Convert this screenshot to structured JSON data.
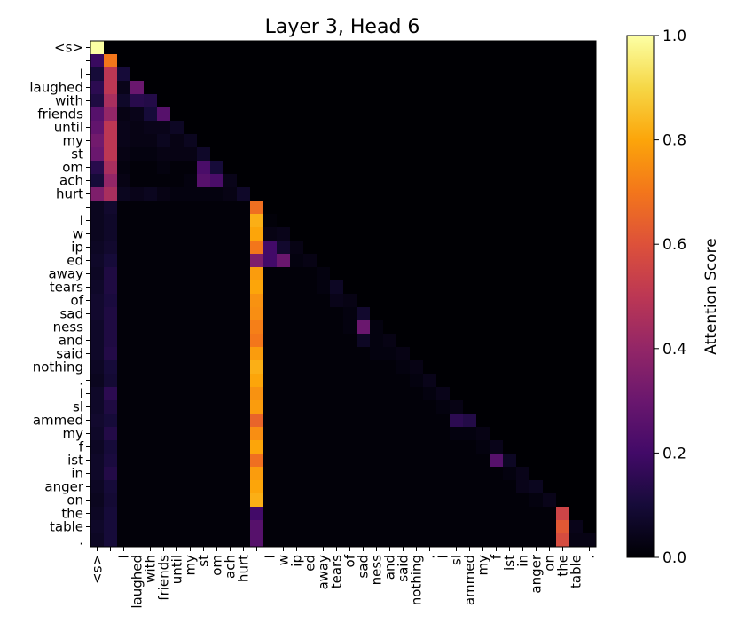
{
  "chart_data": {
    "type": "heatmap",
    "title": "Layer 3, Head 6",
    "colormap": "inferno",
    "tokens": [
      "<s>",
      "",
      "I",
      "laughed",
      "with",
      "friends",
      "until",
      "my",
      "st",
      "om",
      "ach",
      "hurt",
      "",
      "I",
      "w",
      "ip",
      "ed",
      "away",
      "tears",
      "of",
      "sad",
      "ness",
      "and",
      "said",
      "nothing",
      ".",
      "I",
      "sl",
      "ammed",
      "my",
      "f",
      "ist",
      "in",
      "anger",
      "on",
      "the",
      "table",
      "."
    ],
    "colorbar": {
      "label": "Attention Score",
      "min": 0.0,
      "max": 1.0,
      "ticks": [
        "0.0",
        "0.2",
        "0.4",
        "0.6",
        "0.8",
        "1.0"
      ]
    },
    "values": [
      [
        1.0
      ],
      [
        0.18,
        0.7
      ],
      [
        0.1,
        0.5,
        0.1
      ],
      [
        0.15,
        0.5,
        0.04,
        0.3
      ],
      [
        0.12,
        0.45,
        0.07,
        0.14,
        0.13
      ],
      [
        0.25,
        0.4,
        0.03,
        0.04,
        0.1,
        0.25
      ],
      [
        0.28,
        0.5,
        0.04,
        0.03,
        0.04,
        0.04,
        0.06
      ],
      [
        0.32,
        0.5,
        0.04,
        0.03,
        0.03,
        0.05,
        0.03,
        0.05
      ],
      [
        0.3,
        0.5,
        0.03,
        0.02,
        0.02,
        0.03,
        0.03,
        0.03,
        0.07
      ],
      [
        0.14,
        0.45,
        0.02,
        0.01,
        0.01,
        0.02,
        0.01,
        0.01,
        0.22,
        0.1
      ],
      [
        0.1,
        0.4,
        0.03,
        0.01,
        0.01,
        0.01,
        0.01,
        0.02,
        0.25,
        0.22,
        0.04
      ],
      [
        0.35,
        0.45,
        0.05,
        0.04,
        0.05,
        0.03,
        0.02,
        0.02,
        0.02,
        0.02,
        0.03,
        0.07
      ],
      [
        0.05,
        0.08,
        0.01,
        0.01,
        0.01,
        0.01,
        0.01,
        0.01,
        0.01,
        0.01,
        0.01,
        0.01,
        0.68
      ],
      [
        0.05,
        0.07,
        0.01,
        0.01,
        0.01,
        0.01,
        0.01,
        0.01,
        0.01,
        0.01,
        0.01,
        0.01,
        0.82,
        0.01
      ],
      [
        0.05,
        0.07,
        0.01,
        0.01,
        0.01,
        0.01,
        0.01,
        0.01,
        0.01,
        0.01,
        0.01,
        0.01,
        0.8,
        0.03,
        0.04
      ],
      [
        0.06,
        0.08,
        0.01,
        0.01,
        0.01,
        0.01,
        0.01,
        0.01,
        0.01,
        0.01,
        0.01,
        0.01,
        0.7,
        0.2,
        0.08,
        0.03
      ],
      [
        0.07,
        0.1,
        0.01,
        0.01,
        0.01,
        0.01,
        0.01,
        0.01,
        0.01,
        0.01,
        0.01,
        0.01,
        0.35,
        0.2,
        0.3,
        0.02,
        0.03
      ],
      [
        0.06,
        0.12,
        0.01,
        0.01,
        0.01,
        0.01,
        0.01,
        0.01,
        0.01,
        0.01,
        0.01,
        0.01,
        0.78,
        0.01,
        0.01,
        0.01,
        0.01,
        0.02
      ],
      [
        0.07,
        0.12,
        0.01,
        0.01,
        0.01,
        0.01,
        0.01,
        0.01,
        0.01,
        0.01,
        0.01,
        0.01,
        0.8,
        0.01,
        0.01,
        0.01,
        0.01,
        0.02,
        0.06
      ],
      [
        0.08,
        0.11,
        0.01,
        0.01,
        0.01,
        0.01,
        0.01,
        0.01,
        0.01,
        0.01,
        0.01,
        0.01,
        0.76,
        0.01,
        0.01,
        0.01,
        0.01,
        0.01,
        0.04,
        0.03
      ],
      [
        0.08,
        0.12,
        0.01,
        0.01,
        0.01,
        0.01,
        0.01,
        0.01,
        0.01,
        0.01,
        0.01,
        0.01,
        0.75,
        0.01,
        0.01,
        0.01,
        0.01,
        0.01,
        0.01,
        0.02,
        0.08
      ],
      [
        0.07,
        0.12,
        0.01,
        0.01,
        0.01,
        0.01,
        0.01,
        0.01,
        0.01,
        0.01,
        0.01,
        0.01,
        0.72,
        0.01,
        0.01,
        0.01,
        0.01,
        0.01,
        0.01,
        0.02,
        0.3,
        0.02
      ],
      [
        0.07,
        0.12,
        0.01,
        0.01,
        0.01,
        0.01,
        0.01,
        0.01,
        0.01,
        0.01,
        0.01,
        0.01,
        0.7,
        0.01,
        0.01,
        0.01,
        0.01,
        0.01,
        0.01,
        0.01,
        0.06,
        0.02,
        0.03
      ],
      [
        0.07,
        0.13,
        0.01,
        0.01,
        0.01,
        0.01,
        0.01,
        0.01,
        0.01,
        0.01,
        0.01,
        0.01,
        0.78,
        0.01,
        0.01,
        0.01,
        0.01,
        0.01,
        0.01,
        0.01,
        0.01,
        0.02,
        0.02,
        0.03
      ],
      [
        0.06,
        0.1,
        0.01,
        0.01,
        0.01,
        0.01,
        0.01,
        0.01,
        0.01,
        0.01,
        0.01,
        0.01,
        0.82,
        0.01,
        0.01,
        0.01,
        0.01,
        0.01,
        0.01,
        0.01,
        0.01,
        0.01,
        0.01,
        0.02,
        0.03
      ],
      [
        0.05,
        0.09,
        0.01,
        0.01,
        0.01,
        0.01,
        0.01,
        0.01,
        0.01,
        0.01,
        0.01,
        0.01,
        0.8,
        0.01,
        0.01,
        0.01,
        0.01,
        0.01,
        0.01,
        0.01,
        0.01,
        0.01,
        0.01,
        0.01,
        0.02,
        0.04
      ],
      [
        0.07,
        0.15,
        0.01,
        0.01,
        0.01,
        0.01,
        0.01,
        0.01,
        0.01,
        0.01,
        0.01,
        0.01,
        0.76,
        0.01,
        0.01,
        0.01,
        0.01,
        0.01,
        0.01,
        0.01,
        0.01,
        0.01,
        0.01,
        0.01,
        0.01,
        0.02,
        0.04
      ],
      [
        0.07,
        0.12,
        0.01,
        0.01,
        0.01,
        0.01,
        0.01,
        0.01,
        0.01,
        0.01,
        0.01,
        0.01,
        0.78,
        0.01,
        0.01,
        0.01,
        0.01,
        0.01,
        0.01,
        0.01,
        0.01,
        0.01,
        0.01,
        0.01,
        0.01,
        0.01,
        0.02,
        0.03
      ],
      [
        0.08,
        0.1,
        0.01,
        0.01,
        0.01,
        0.01,
        0.01,
        0.01,
        0.01,
        0.01,
        0.01,
        0.01,
        0.65,
        0.01,
        0.01,
        0.01,
        0.01,
        0.01,
        0.01,
        0.01,
        0.01,
        0.01,
        0.01,
        0.01,
        0.01,
        0.01,
        0.01,
        0.15,
        0.13
      ],
      [
        0.07,
        0.13,
        0.01,
        0.01,
        0.01,
        0.01,
        0.01,
        0.01,
        0.01,
        0.01,
        0.01,
        0.01,
        0.75,
        0.01,
        0.01,
        0.01,
        0.01,
        0.01,
        0.01,
        0.01,
        0.01,
        0.01,
        0.01,
        0.01,
        0.01,
        0.01,
        0.01,
        0.02,
        0.02,
        0.03
      ],
      [
        0.06,
        0.1,
        0.01,
        0.01,
        0.01,
        0.01,
        0.01,
        0.01,
        0.01,
        0.01,
        0.01,
        0.01,
        0.8,
        0.01,
        0.01,
        0.01,
        0.01,
        0.01,
        0.01,
        0.01,
        0.01,
        0.01,
        0.01,
        0.01,
        0.01,
        0.01,
        0.01,
        0.01,
        0.01,
        0.02,
        0.04
      ],
      [
        0.07,
        0.11,
        0.01,
        0.01,
        0.01,
        0.01,
        0.01,
        0.01,
        0.01,
        0.01,
        0.01,
        0.01,
        0.68,
        0.01,
        0.01,
        0.01,
        0.01,
        0.01,
        0.01,
        0.01,
        0.01,
        0.01,
        0.01,
        0.01,
        0.01,
        0.01,
        0.01,
        0.01,
        0.01,
        0.01,
        0.25,
        0.06
      ],
      [
        0.07,
        0.13,
        0.01,
        0.01,
        0.01,
        0.01,
        0.01,
        0.01,
        0.01,
        0.01,
        0.01,
        0.01,
        0.78,
        0.01,
        0.01,
        0.01,
        0.01,
        0.01,
        0.01,
        0.01,
        0.01,
        0.01,
        0.01,
        0.01,
        0.01,
        0.01,
        0.01,
        0.01,
        0.01,
        0.01,
        0.01,
        0.02,
        0.04
      ],
      [
        0.06,
        0.1,
        0.01,
        0.01,
        0.01,
        0.01,
        0.01,
        0.01,
        0.01,
        0.01,
        0.01,
        0.01,
        0.8,
        0.01,
        0.01,
        0.01,
        0.01,
        0.01,
        0.01,
        0.01,
        0.01,
        0.01,
        0.01,
        0.01,
        0.01,
        0.01,
        0.01,
        0.01,
        0.01,
        0.01,
        0.01,
        0.01,
        0.04,
        0.05
      ],
      [
        0.05,
        0.09,
        0.01,
        0.01,
        0.01,
        0.01,
        0.01,
        0.01,
        0.01,
        0.01,
        0.01,
        0.01,
        0.82,
        0.01,
        0.01,
        0.01,
        0.01,
        0.01,
        0.01,
        0.01,
        0.01,
        0.01,
        0.01,
        0.01,
        0.01,
        0.01,
        0.01,
        0.01,
        0.01,
        0.01,
        0.01,
        0.01,
        0.01,
        0.02,
        0.04
      ],
      [
        0.06,
        0.1,
        0.01,
        0.01,
        0.01,
        0.01,
        0.01,
        0.01,
        0.01,
        0.01,
        0.01,
        0.01,
        0.2,
        0.01,
        0.01,
        0.01,
        0.01,
        0.01,
        0.01,
        0.01,
        0.01,
        0.01,
        0.01,
        0.01,
        0.01,
        0.01,
        0.01,
        0.01,
        0.01,
        0.01,
        0.01,
        0.01,
        0.01,
        0.01,
        0.01,
        0.55
      ],
      [
        0.07,
        0.1,
        0.01,
        0.01,
        0.01,
        0.01,
        0.01,
        0.01,
        0.01,
        0.01,
        0.01,
        0.01,
        0.25,
        0.01,
        0.01,
        0.01,
        0.01,
        0.01,
        0.01,
        0.01,
        0.01,
        0.01,
        0.01,
        0.01,
        0.01,
        0.01,
        0.01,
        0.01,
        0.01,
        0.01,
        0.01,
        0.01,
        0.01,
        0.01,
        0.01,
        0.62,
        0.04
      ],
      [
        0.06,
        0.1,
        0.01,
        0.01,
        0.01,
        0.01,
        0.01,
        0.01,
        0.01,
        0.01,
        0.01,
        0.01,
        0.25,
        0.01,
        0.01,
        0.01,
        0.01,
        0.01,
        0.01,
        0.01,
        0.01,
        0.01,
        0.01,
        0.01,
        0.01,
        0.01,
        0.01,
        0.01,
        0.01,
        0.01,
        0.01,
        0.01,
        0.01,
        0.01,
        0.01,
        0.58,
        0.03,
        0.03
      ]
    ]
  }
}
